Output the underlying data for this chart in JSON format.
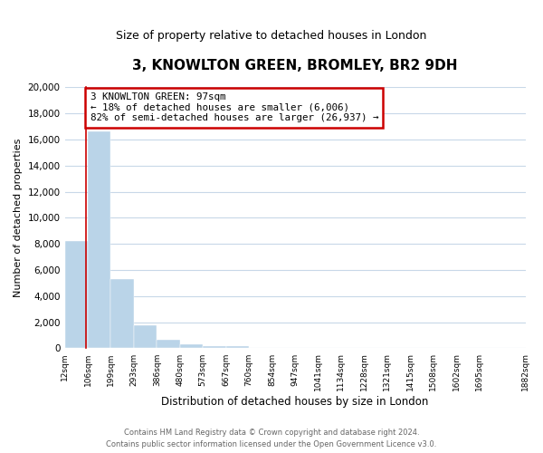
{
  "title": "3, KNOWLTON GREEN, BROMLEY, BR2 9DH",
  "subtitle": "Size of property relative to detached houses in London",
  "xlabel": "Distribution of detached houses by size in London",
  "ylabel": "Number of detached properties",
  "bar_values": [
    8200,
    16600,
    5300,
    1800,
    650,
    300,
    200,
    150,
    0,
    0,
    0,
    0,
    0,
    0,
    0,
    0,
    0,
    0,
    0
  ],
  "bar_left_edges": [
    12,
    106,
    199,
    293,
    386,
    480,
    573,
    667,
    760,
    854,
    947,
    1041,
    1134,
    1228,
    1321,
    1415,
    1508,
    1602,
    1695
  ],
  "bar_widths": [
    94,
    93,
    94,
    93,
    94,
    93,
    94,
    93,
    94,
    93,
    94,
    93,
    94,
    93,
    94,
    93,
    94,
    93,
    94
  ],
  "tick_labels": [
    "12sqm",
    "106sqm",
    "199sqm",
    "293sqm",
    "386sqm",
    "480sqm",
    "573sqm",
    "667sqm",
    "760sqm",
    "854sqm",
    "947sqm",
    "1041sqm",
    "1134sqm",
    "1228sqm",
    "1321sqm",
    "1415sqm",
    "1508sqm",
    "1602sqm",
    "1695sqm",
    "1882sqm"
  ],
  "tick_positions": [
    12,
    106,
    199,
    293,
    386,
    480,
    573,
    667,
    760,
    854,
    947,
    1041,
    1134,
    1228,
    1321,
    1415,
    1508,
    1602,
    1695,
    1882
  ],
  "bar_color": "#bad4e8",
  "bar_edge_color": "#bad4e8",
  "property_size": 97,
  "red_line_x": 97,
  "annotation_title": "3 KNOWLTON GREEN: 97sqm",
  "annotation_line1": "← 18% of detached houses are smaller (6,006)",
  "annotation_line2": "82% of semi-detached houses are larger (26,937) →",
  "annotation_box_color": "#ffffff",
  "annotation_box_edge": "#cc0000",
  "red_line_color": "#cc0000",
  "ylim": [
    0,
    20000
  ],
  "xlim": [
    12,
    1882
  ],
  "yticks": [
    0,
    2000,
    4000,
    6000,
    8000,
    10000,
    12000,
    14000,
    16000,
    18000,
    20000
  ],
  "footer_line1": "Contains HM Land Registry data © Crown copyright and database right 2024.",
  "footer_line2": "Contains public sector information licensed under the Open Government Licence v3.0.",
  "background_color": "#ffffff",
  "grid_color": "#c8d8e8"
}
